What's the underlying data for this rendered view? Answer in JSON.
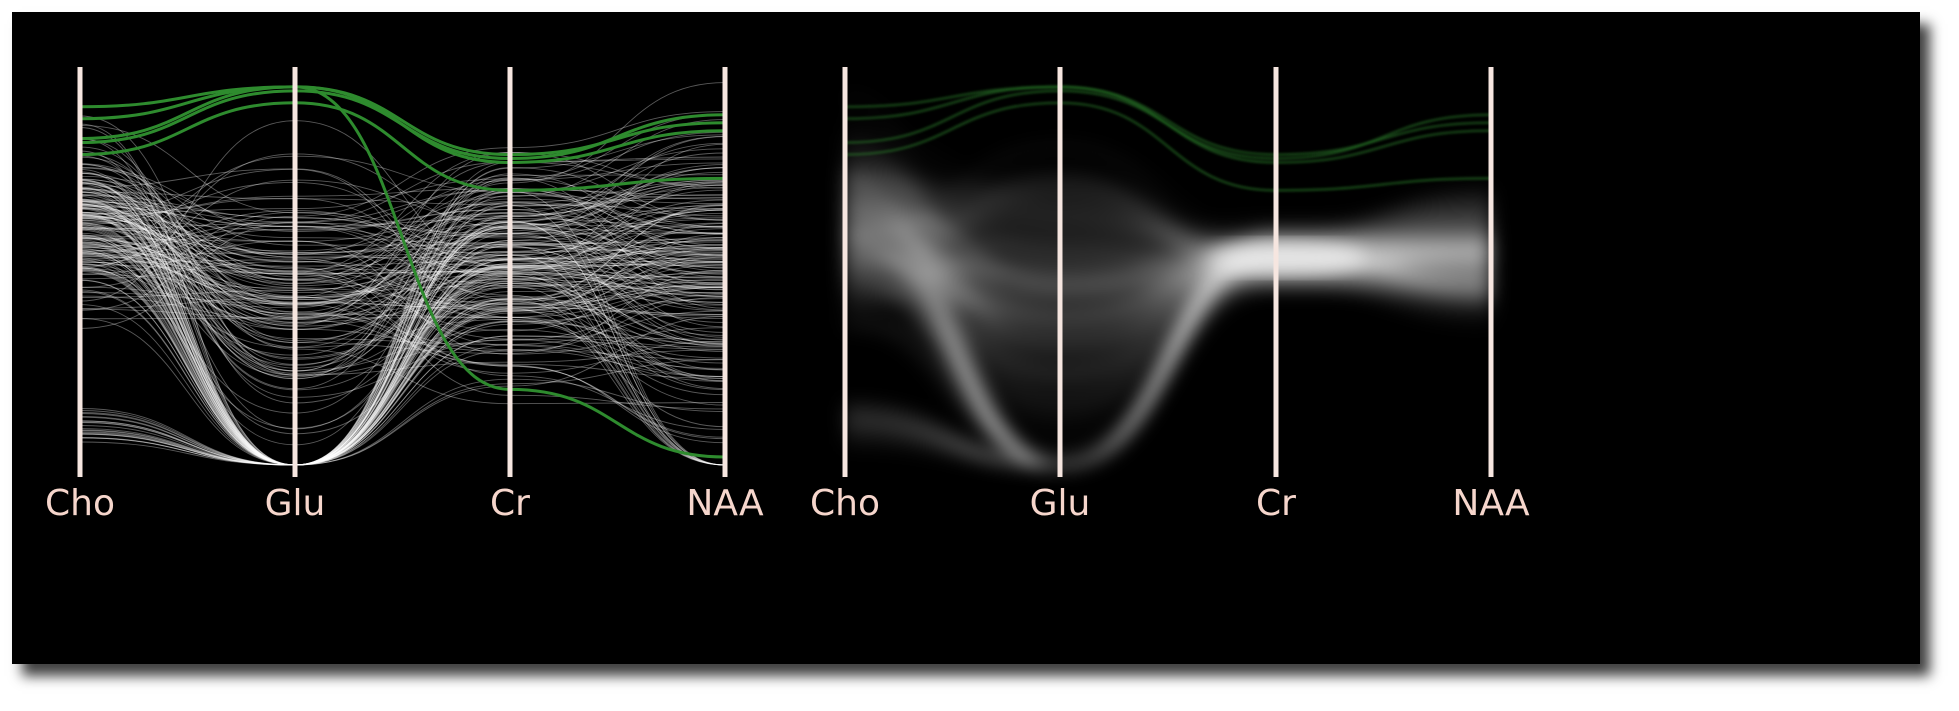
{
  "chart_data": [
    {
      "type": "parallel-coordinates",
      "rendering": "polylines",
      "axes": [
        "Cho",
        "Glu",
        "Cr",
        "NAA"
      ],
      "value_range": [
        0,
        1
      ],
      "colors": {
        "background": "#000000",
        "axis": "#f6e6e0",
        "label": "#f6d6cc",
        "context": "#ffffff",
        "highlight": "#2e8b2e"
      },
      "context_lines": 220,
      "highlighted_lines": [
        [
          0.9,
          0.95,
          0.78,
          0.86
        ],
        [
          0.87,
          0.95,
          0.76,
          0.84
        ],
        [
          0.81,
          0.94,
          0.77,
          0.88
        ],
        [
          0.78,
          0.91,
          0.69,
          0.72
        ],
        [
          0.82,
          0.95,
          0.19,
          0.02
        ]
      ]
    },
    {
      "type": "parallel-coordinates",
      "rendering": "density",
      "axes": [
        "Cho",
        "Glu",
        "Cr",
        "NAA"
      ],
      "value_range": [
        0,
        1
      ],
      "colors": {
        "background": "#000000",
        "axis": "#f6e6e0",
        "label": "#f6d6cc",
        "context": "#ffffff",
        "highlight": "#2e8b2e"
      },
      "context_lines": 320,
      "highlighted_lines": [
        [
          0.9,
          0.95,
          0.78,
          0.86
        ],
        [
          0.87,
          0.95,
          0.76,
          0.84
        ],
        [
          0.81,
          0.94,
          0.77,
          0.88
        ],
        [
          0.78,
          0.91,
          0.69,
          0.72
        ]
      ]
    }
  ]
}
